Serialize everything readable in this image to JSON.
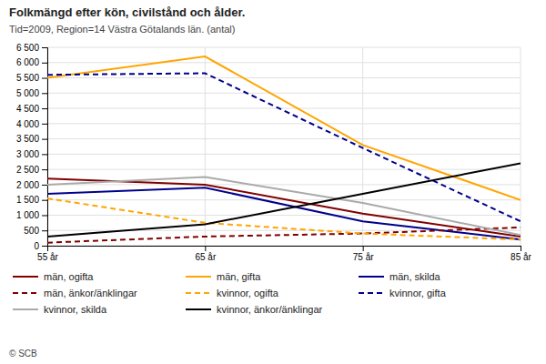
{
  "chart_data": {
    "type": "line",
    "title": "Folkmängd efter kön, civilstånd och ålder.",
    "subtitle": "Tid=2009, Region=14 Västra Götalands län. (antal)",
    "annotations": [
      "© SCB"
    ],
    "x": [
      55,
      65,
      75,
      85
    ],
    "xlim": [
      55,
      85
    ],
    "xticks": [
      {
        "value": 55,
        "label": "55 år"
      },
      {
        "value": 65,
        "label": "65 år"
      },
      {
        "value": 75,
        "label": "75 år"
      },
      {
        "value": 85,
        "label": "85 år"
      }
    ],
    "ylim": [
      0,
      6500
    ],
    "yticks": [
      0,
      500,
      {
        "value": 1000,
        "label": "1 000"
      },
      {
        "value": 1500,
        "label": "1 500"
      },
      {
        "value": 2000,
        "label": "2 000"
      },
      {
        "value": 2500,
        "label": "2 500"
      },
      {
        "value": 3000,
        "label": "3 000"
      },
      {
        "value": 3500,
        "label": "3 500"
      },
      {
        "value": 4000,
        "label": "4 000"
      },
      {
        "value": 4500,
        "label": "4 500"
      },
      {
        "value": 5000,
        "label": "5 000"
      },
      {
        "value": 5500,
        "label": "5 500"
      },
      {
        "value": 6000,
        "label": "6 000"
      },
      {
        "value": 6500,
        "label": "6 500"
      }
    ],
    "grid": true,
    "legend": "bottom",
    "series": [
      {
        "name": "män, ogifta",
        "color": "#800000",
        "line_style": "solid",
        "values": [
          2200,
          2000,
          1050,
          300
        ]
      },
      {
        "name": "män, gifta",
        "color": "#FFA500",
        "line_style": "solid",
        "values": [
          5500,
          6200,
          3300,
          1500
        ]
      },
      {
        "name": "män, skilda",
        "color": "#00008B",
        "line_style": "solid",
        "values": [
          1700,
          1900,
          800,
          200
        ]
      },
      {
        "name": "män, änkor/änklingar",
        "color": "#800000",
        "line_style": "dashed",
        "values": [
          100,
          300,
          400,
          600
        ]
      },
      {
        "name": "kvinnor, ogifta",
        "color": "#FFA500",
        "line_style": "dashed",
        "values": [
          1550,
          750,
          400,
          200
        ]
      },
      {
        "name": "kvinnor, gifta",
        "color": "#00008B",
        "line_style": "dashed",
        "values": [
          5600,
          5650,
          3200,
          800
        ]
      },
      {
        "name": "kvinnor, skilda",
        "color": "#AAAAAA",
        "line_style": "solid",
        "values": [
          2000,
          2250,
          1400,
          350
        ]
      },
      {
        "name": "kvinnor, änkor/änklingar",
        "color": "#000000",
        "line_style": "solid",
        "values": [
          300,
          700,
          1700,
          2700
        ]
      }
    ]
  }
}
